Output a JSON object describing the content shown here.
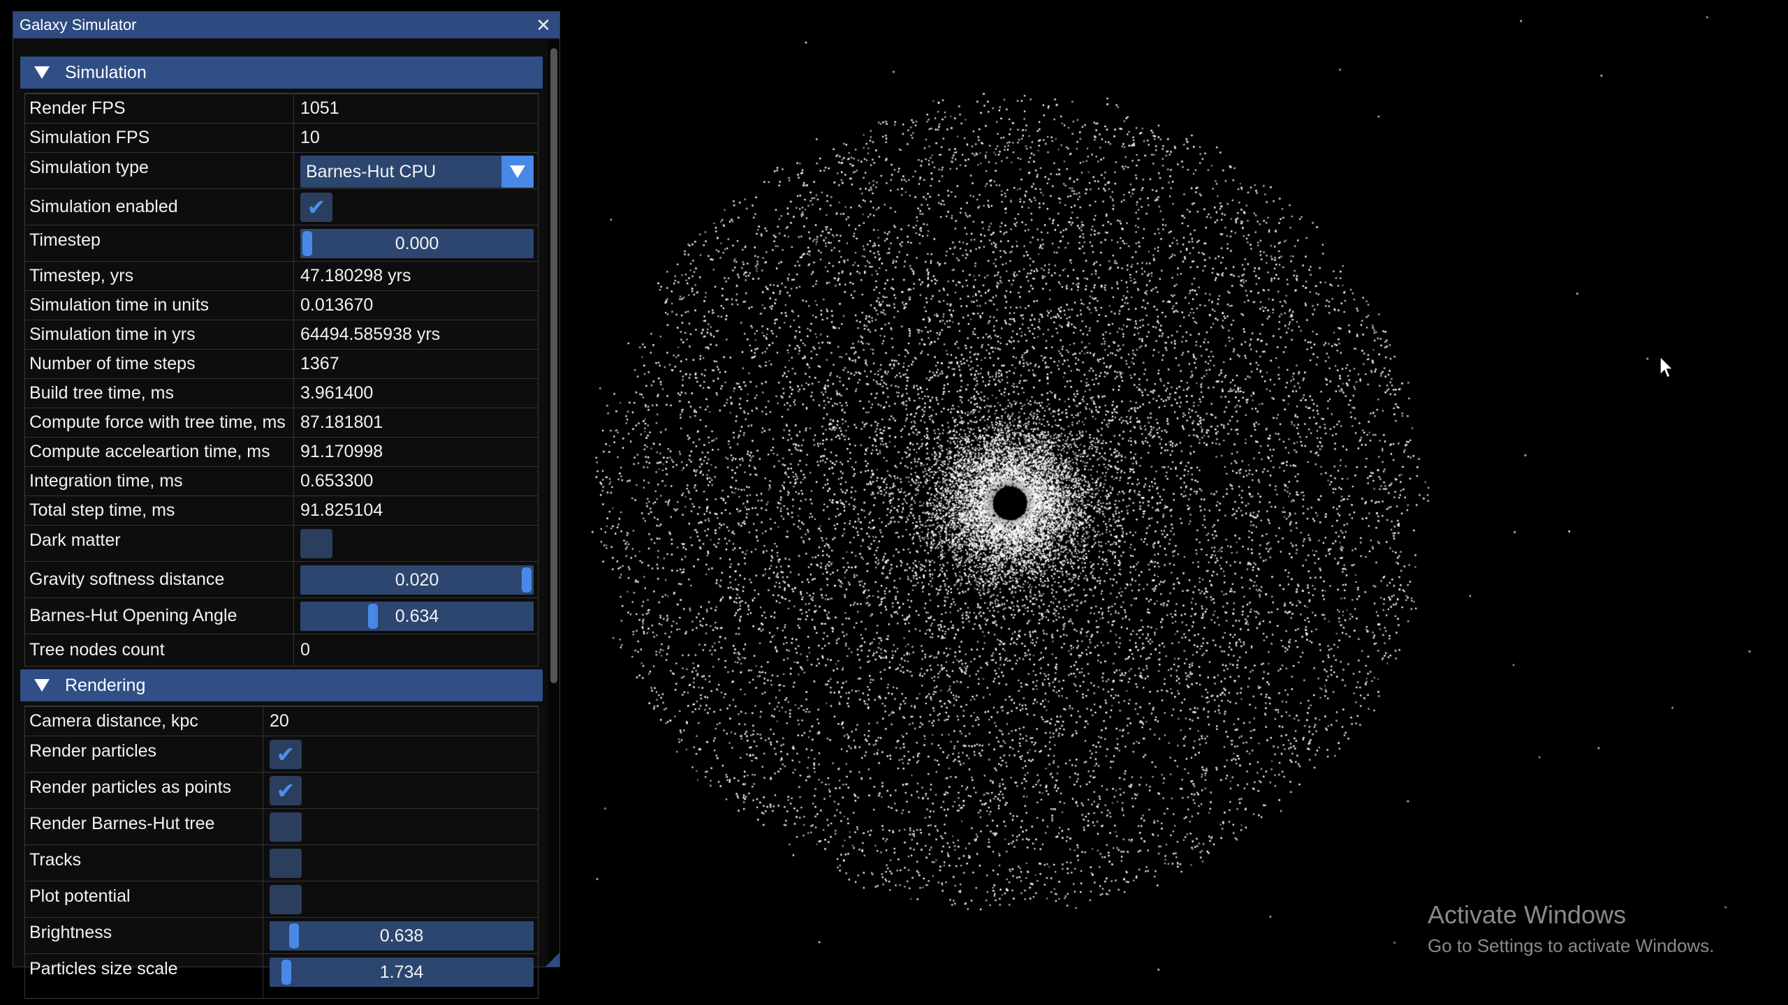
{
  "window": {
    "title": "Galaxy Simulator",
    "close_glyph": "✕"
  },
  "simulation": {
    "header": "Simulation",
    "rows": [
      {
        "label": "Render FPS",
        "value": "1051"
      },
      {
        "label": "Simulation FPS",
        "value": "10"
      },
      {
        "label": "Simulation type",
        "value": "Barnes-Hut CPU"
      },
      {
        "label": "Simulation enabled",
        "checked": true
      },
      {
        "label": "Timestep",
        "value": "0.000",
        "fraction": 0.0
      },
      {
        "label": "Timestep, yrs",
        "value": "47.180298 yrs"
      },
      {
        "label": "Simulation time in units",
        "value": "0.013670"
      },
      {
        "label": "Simulation time in yrs",
        "value": "64494.585938 yrs"
      },
      {
        "label": "Number of time steps",
        "value": "1367"
      },
      {
        "label": "Build tree time, ms",
        "value": "3.961400"
      },
      {
        "label": "Compute force with tree time, ms",
        "value": "87.181801"
      },
      {
        "label": "Compute acceleartion time, ms",
        "value": "91.170998"
      },
      {
        "label": "Integration time, ms",
        "value": "0.653300"
      },
      {
        "label": "Total step time, ms",
        "value": "91.825104"
      },
      {
        "label": "Dark matter",
        "checked": false
      },
      {
        "label": "Gravity softness distance",
        "value": "0.020",
        "fraction": 1.0
      },
      {
        "label": "Barnes-Hut Opening Angle",
        "value": "0.634",
        "fraction": 0.3
      },
      {
        "label": "Tree nodes count",
        "value": "0"
      }
    ]
  },
  "rendering": {
    "header": "Rendering",
    "rows": [
      {
        "label": "Camera distance, kpc",
        "value": "20"
      },
      {
        "label": "Render particles",
        "checked": true
      },
      {
        "label": "Render particles as points",
        "checked": true
      },
      {
        "label": "Render Barnes-Hut tree",
        "checked": false
      },
      {
        "label": "Tracks",
        "checked": false
      },
      {
        "label": "Plot potential",
        "checked": false
      },
      {
        "label": "Brightness",
        "value": "0.638",
        "fraction": 0.07
      },
      {
        "label": "Particles size scale",
        "value": "1.734",
        "fraction": 0.04
      }
    ]
  },
  "watermark": {
    "line1": "Activate Windows",
    "line2": "Go to Settings to activate Windows."
  },
  "colors": {
    "accent": "#4a88e8",
    "header_bg": "#2f4f86",
    "title_bg": "#2e4a80",
    "frame_bg": "#2c4670"
  },
  "icons": {
    "check": "✔",
    "cursor": "arrow-cursor-icon"
  }
}
